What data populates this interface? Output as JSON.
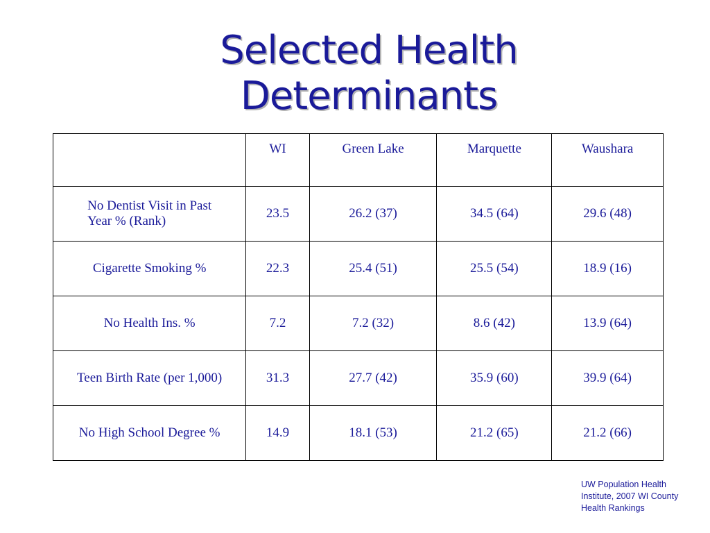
{
  "title": {
    "line1": "Selected Health",
    "line2": "Determinants"
  },
  "table": {
    "headers": [
      "",
      "WI",
      "Green Lake",
      "Marquette",
      "Waushara"
    ],
    "rows": [
      {
        "label_line1": "No Dentist Visit in Past",
        "label_line2": "Year % (Rank)",
        "values": [
          "23.5",
          "26.2  (37)",
          "34.5 (64)",
          "29.6 (48)"
        ]
      },
      {
        "label": "Cigarette Smoking %",
        "values": [
          "22.3",
          "25.4 (51)",
          "25.5 (54)",
          "18.9 (16)"
        ]
      },
      {
        "label": "No Health Ins. %",
        "values": [
          "7.2",
          "7.2 (32)",
          "8.6 (42)",
          "13.9 (64)"
        ]
      },
      {
        "label": "Teen Birth Rate (per 1,000)",
        "values": [
          "31.3",
          "27.7 (42)",
          "35.9 (60)",
          "39.9 (64)"
        ]
      },
      {
        "label": "No High School Degree %",
        "values": [
          "14.9",
          "18.1 (53)",
          "21.2 (65)",
          "21.2 (66)"
        ]
      }
    ]
  },
  "source": {
    "line1": "UW Population Health",
    "line2": "Institute, 2007 WI County",
    "line3": "Health Rankings"
  }
}
